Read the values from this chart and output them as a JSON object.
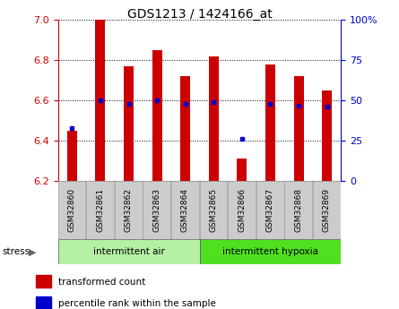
{
  "title": "GDS1213 / 1424166_at",
  "samples": [
    "GSM32860",
    "GSM32861",
    "GSM32862",
    "GSM32863",
    "GSM32864",
    "GSM32865",
    "GSM32866",
    "GSM32867",
    "GSM32868",
    "GSM32869"
  ],
  "transformed_count": [
    6.45,
    7.0,
    6.77,
    6.85,
    6.72,
    6.82,
    6.31,
    6.78,
    6.72,
    6.65
  ],
  "percentile_rank": [
    33,
    50,
    48,
    50,
    48,
    49,
    26,
    48,
    47,
    46
  ],
  "ymin": 6.2,
  "ymax": 7.0,
  "yticks": [
    6.2,
    6.4,
    6.6,
    6.8,
    7.0
  ],
  "right_yticks": [
    0,
    25,
    50,
    75,
    100
  ],
  "right_yticklabels": [
    "0",
    "25",
    "50",
    "75",
    "100%"
  ],
  "bar_color": "#cc0000",
  "percentile_color": "#0000cc",
  "group1_label": "intermittent air",
  "group2_label": "intermittent hypoxia",
  "group1_indices": [
    0,
    1,
    2,
    3,
    4
  ],
  "group2_indices": [
    5,
    6,
    7,
    8,
    9
  ],
  "stress_label": "stress",
  "legend_labels": [
    "transformed count",
    "percentile rank within the sample"
  ],
  "group1_color": "#b5f0a5",
  "group2_color": "#50e020",
  "tick_bg_color": "#cccccc",
  "plot_bg_color": "#ffffff",
  "bar_width": 0.35
}
